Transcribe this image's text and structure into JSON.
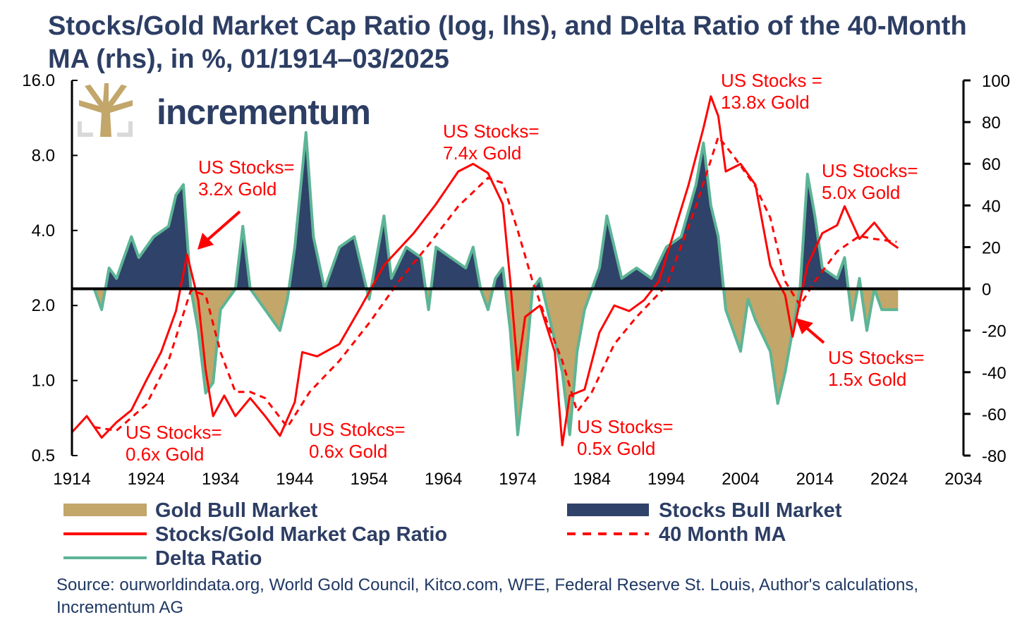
{
  "chart_data": {
    "type": "line",
    "title": "Stocks/Gold Market Cap Ratio (log, lhs), and Delta Ratio of the 40-Month MA (rhs), in %, 01/1914–03/2025",
    "logo": "incrementum",
    "left_axis": {
      "scale": "log",
      "range": [
        0.5,
        16
      ],
      "ticks": [
        "16.0",
        "8.0",
        "4.0",
        "2.0",
        "1.0",
        "0.5"
      ],
      "tick_values": [
        16,
        8,
        4,
        2,
        1,
        0.5
      ]
    },
    "right_axis": {
      "range": [
        -80,
        100
      ],
      "ticks": [
        "100",
        "80",
        "60",
        "40",
        "20",
        "0",
        "-20",
        "-40",
        "-60",
        "-80"
      ],
      "tick_values": [
        100,
        80,
        60,
        40,
        20,
        0,
        -20,
        -40,
        -60,
        -80
      ]
    },
    "x_axis": {
      "range": [
        1914,
        2034
      ],
      "ticks": [
        "1914",
        "1924",
        "1934",
        "1944",
        "1954",
        "1964",
        "1974",
        "1984",
        "1994",
        "2004",
        "2014",
        "2024",
        "2034"
      ]
    },
    "colors": {
      "ratio": "#ff0000",
      "ma": "#ff0000",
      "delta": "#5db596",
      "stocks_bull": "#2f4269",
      "gold_bull": "#c2a66a"
    },
    "series": {
      "ratio": [
        [
          1914,
          0.62
        ],
        [
          1916,
          0.72
        ],
        [
          1918,
          0.59
        ],
        [
          1920,
          0.68
        ],
        [
          1922,
          0.76
        ],
        [
          1924,
          1.0
        ],
        [
          1926,
          1.3
        ],
        [
          1928,
          1.9
        ],
        [
          1929.5,
          3.2
        ],
        [
          1931,
          2.1
        ],
        [
          1932,
          1.1
        ],
        [
          1933,
          0.72
        ],
        [
          1934.5,
          0.87
        ],
        [
          1936,
          0.72
        ],
        [
          1938,
          0.85
        ],
        [
          1940,
          0.72
        ],
        [
          1942,
          0.6
        ],
        [
          1944,
          0.82
        ],
        [
          1945,
          1.3
        ],
        [
          1947,
          1.25
        ],
        [
          1950,
          1.4
        ],
        [
          1953,
          2.0
        ],
        [
          1956,
          2.9
        ],
        [
          1960,
          3.9
        ],
        [
          1963,
          5.1
        ],
        [
          1966,
          6.9
        ],
        [
          1968,
          7.4
        ],
        [
          1970,
          6.8
        ],
        [
          1972,
          5.1
        ],
        [
          1973,
          2.5
        ],
        [
          1974,
          1.1
        ],
        [
          1975,
          1.8
        ],
        [
          1977,
          2.0
        ],
        [
          1979,
          1.3
        ],
        [
          1980,
          0.55
        ],
        [
          1981,
          0.87
        ],
        [
          1983,
          0.92
        ],
        [
          1985,
          1.56
        ],
        [
          1987,
          2.0
        ],
        [
          1989,
          1.9
        ],
        [
          1991,
          2.1
        ],
        [
          1993,
          2.5
        ],
        [
          1995,
          3.9
        ],
        [
          1997,
          6.1
        ],
        [
          1999,
          10.3
        ],
        [
          2000,
          13.8
        ],
        [
          2001,
          11.5
        ],
        [
          2002,
          6.9
        ],
        [
          2004,
          7.4
        ],
        [
          2006,
          6.1
        ],
        [
          2008,
          2.9
        ],
        [
          2009,
          2.5
        ],
        [
          2010,
          2.2
        ],
        [
          2011,
          1.5
        ],
        [
          2013,
          2.9
        ],
        [
          2015,
          3.9
        ],
        [
          2017,
          4.2
        ],
        [
          2018,
          5.0
        ],
        [
          2020,
          3.7
        ],
        [
          2022,
          4.3
        ],
        [
          2024,
          3.6
        ],
        [
          2025.2,
          3.4
        ]
      ],
      "ma_40_month": [
        [
          1917,
          0.65
        ],
        [
          1920,
          0.63
        ],
        [
          1924,
          0.8
        ],
        [
          1927,
          1.2
        ],
        [
          1930,
          2.3
        ],
        [
          1932,
          2.2
        ],
        [
          1934,
          1.3
        ],
        [
          1936,
          0.9
        ],
        [
          1938,
          0.9
        ],
        [
          1940,
          0.85
        ],
        [
          1943,
          0.65
        ],
        [
          1946,
          0.9
        ],
        [
          1950,
          1.2
        ],
        [
          1954,
          1.7
        ],
        [
          1958,
          2.5
        ],
        [
          1962,
          3.5
        ],
        [
          1966,
          5.0
        ],
        [
          1970,
          6.5
        ],
        [
          1972,
          6.2
        ],
        [
          1974,
          4.0
        ],
        [
          1976,
          2.5
        ],
        [
          1978,
          1.7
        ],
        [
          1980,
          1.2
        ],
        [
          1982,
          0.75
        ],
        [
          1984,
          0.9
        ],
        [
          1987,
          1.4
        ],
        [
          1990,
          1.8
        ],
        [
          1994,
          2.4
        ],
        [
          1998,
          5.0
        ],
        [
          2001,
          9.5
        ],
        [
          2003,
          8.0
        ],
        [
          2006,
          6.0
        ],
        [
          2008,
          4.5
        ],
        [
          2010,
          2.5
        ],
        [
          2012,
          2.0
        ],
        [
          2014,
          2.5
        ],
        [
          2017,
          3.3
        ],
        [
          2020,
          3.8
        ],
        [
          2022,
          3.7
        ],
        [
          2025,
          3.6
        ]
      ],
      "delta_ratio": [
        [
          1917,
          0
        ],
        [
          1918,
          -10
        ],
        [
          1919,
          10
        ],
        [
          1920,
          5
        ],
        [
          1922,
          25
        ],
        [
          1923,
          15
        ],
        [
          1925,
          25
        ],
        [
          1927,
          30
        ],
        [
          1928,
          45
        ],
        [
          1929,
          50
        ],
        [
          1930,
          0
        ],
        [
          1931,
          -20
        ],
        [
          1932,
          -50
        ],
        [
          1933,
          -45
        ],
        [
          1934,
          -10
        ],
        [
          1936,
          0
        ],
        [
          1937,
          30
        ],
        [
          1938,
          0
        ],
        [
          1940,
          -10
        ],
        [
          1942,
          -20
        ],
        [
          1943,
          -5
        ],
        [
          1944,
          20
        ],
        [
          1945.5,
          75
        ],
        [
          1946.5,
          25
        ],
        [
          1948,
          0
        ],
        [
          1950,
          20
        ],
        [
          1952,
          25
        ],
        [
          1954,
          -5
        ],
        [
          1956,
          35
        ],
        [
          1957,
          5
        ],
        [
          1959,
          20
        ],
        [
          1961,
          15
        ],
        [
          1962,
          -10
        ],
        [
          1963,
          20
        ],
        [
          1965,
          15
        ],
        [
          1967,
          10
        ],
        [
          1968,
          20
        ],
        [
          1969,
          0
        ],
        [
          1970,
          -10
        ],
        [
          1971,
          5
        ],
        [
          1972,
          10
        ],
        [
          1973,
          -20
        ],
        [
          1974,
          -70
        ],
        [
          1975,
          -40
        ],
        [
          1976,
          0
        ],
        [
          1977,
          5
        ],
        [
          1978,
          -10
        ],
        [
          1980,
          -40
        ],
        [
          1981,
          -70
        ],
        [
          1982,
          -30
        ],
        [
          1983,
          -10
        ],
        [
          1985,
          10
        ],
        [
          1986,
          35
        ],
        [
          1987,
          20
        ],
        [
          1988,
          5
        ],
        [
          1990,
          10
        ],
        [
          1992,
          5
        ],
        [
          1994,
          20
        ],
        [
          1996,
          25
        ],
        [
          1998,
          50
        ],
        [
          1999,
          70
        ],
        [
          2000,
          40
        ],
        [
          2001,
          25
        ],
        [
          2002,
          -10
        ],
        [
          2004,
          -30
        ],
        [
          2005,
          -5
        ],
        [
          2006,
          -15
        ],
        [
          2008,
          -30
        ],
        [
          2009,
          -55
        ],
        [
          2010,
          -40
        ],
        [
          2011,
          -20
        ],
        [
          2012,
          0
        ],
        [
          2013,
          55
        ],
        [
          2014,
          35
        ],
        [
          2015,
          10
        ],
        [
          2017,
          5
        ],
        [
          2018,
          15
        ],
        [
          2019,
          -15
        ],
        [
          2020,
          5
        ],
        [
          2021,
          -20
        ],
        [
          2022,
          0
        ],
        [
          2023,
          -10
        ],
        [
          2025.2,
          -10
        ]
      ]
    },
    "annotations": [
      {
        "line1": "US Stocks=",
        "line2": "3.2x Gold"
      },
      {
        "line1": "US Stocks=",
        "line2": "0.6x Gold"
      },
      {
        "line1": "US Stokcs=",
        "line2": "0.6x Gold"
      },
      {
        "line1": "US Stocks=",
        "line2": "7.4x Gold"
      },
      {
        "line1": "US Stocks=",
        "line2": "0.5x Gold"
      },
      {
        "line1": "US Stocks =",
        "line2": "13.8x Gold"
      },
      {
        "line1": "US Stocks=",
        "line2": "5.0x Gold"
      },
      {
        "line1": "US Stocks=",
        "line2": "1.5x Gold"
      }
    ],
    "legend": [
      "Gold Bull Market",
      "Stocks Bull Market",
      "Stocks/Gold Market Cap Ratio",
      "40 Month MA",
      "Delta Ratio"
    ],
    "legend_position": "bottom"
  },
  "source": "Source: ourworldindata.org, World Gold Council, Kitco.com, WFE, Federal Reserve St. Louis, Author's calculations, Incrementum AG"
}
